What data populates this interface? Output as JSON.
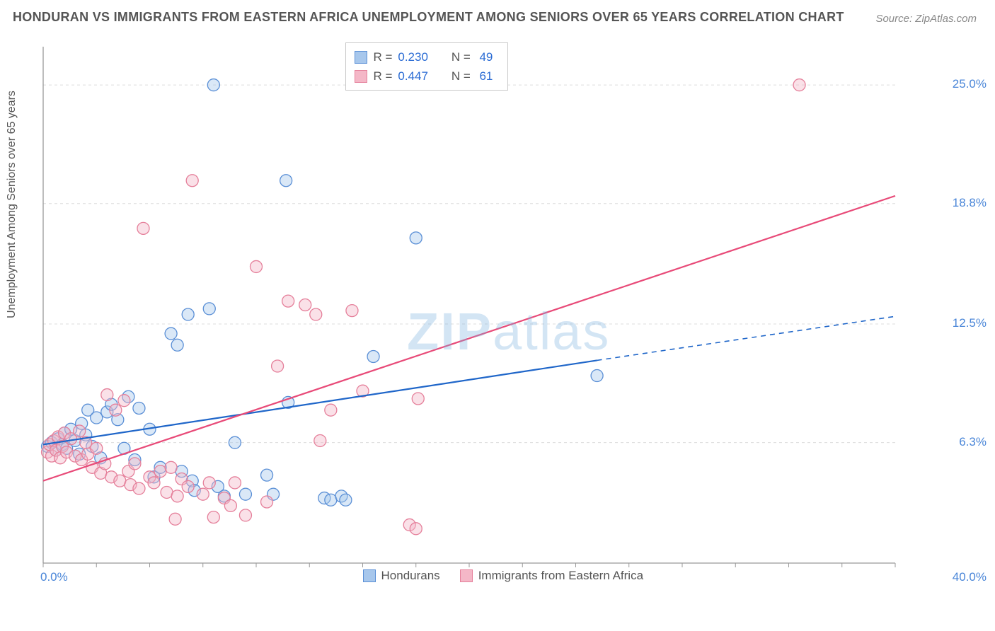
{
  "title": "HONDURAN VS IMMIGRANTS FROM EASTERN AFRICA UNEMPLOYMENT AMONG SENIORS OVER 65 YEARS CORRELATION CHART",
  "source": "Source: ZipAtlas.com",
  "ylabel": "Unemployment Among Seniors over 65 years",
  "watermark_part1": "ZIP",
  "watermark_part2": "atlas",
  "chart": {
    "type": "scatter",
    "xlim": [
      0,
      40
    ],
    "ylim": [
      0,
      27
    ],
    "x_tick_left": "0.0%",
    "x_tick_right": "40.0%",
    "y_ticks": [
      {
        "v": 6.3,
        "label": "6.3%"
      },
      {
        "v": 12.5,
        "label": "12.5%"
      },
      {
        "v": 18.8,
        "label": "18.8%"
      },
      {
        "v": 25.0,
        "label": "25.0%"
      }
    ],
    "x_minor_ticks": [
      0,
      2.5,
      5,
      7.5,
      10,
      12.5,
      15,
      17.5,
      20,
      22.5,
      25,
      27.5,
      30,
      32.5,
      35,
      37.5,
      40
    ],
    "background_color": "#ffffff",
    "grid_color": "#dcdcdc",
    "axis_color": "#999999",
    "marker_radius": 8.5,
    "marker_fill_opacity": 0.42,
    "marker_stroke_width": 1.3,
    "trend_line_width": 2.2,
    "series": [
      {
        "name": "Hondurans",
        "color_stroke": "#5a8fd6",
        "color_fill": "#a7c7ec",
        "line_color": "#1f66c9",
        "R": "0.230",
        "N": "49",
        "trend": {
          "x1": 0,
          "y1": 6.2,
          "x2": 26,
          "y2": 10.6,
          "dash_to_x": 40,
          "dash_to_y": 12.9
        },
        "points": [
          [
            0.2,
            6.1
          ],
          [
            0.4,
            6.3
          ],
          [
            0.6,
            5.9
          ],
          [
            0.7,
            6.5
          ],
          [
            0.9,
            6.2
          ],
          [
            1.0,
            6.8
          ],
          [
            1.1,
            6.0
          ],
          [
            1.3,
            7.0
          ],
          [
            1.5,
            6.4
          ],
          [
            1.7,
            5.7
          ],
          [
            1.8,
            7.3
          ],
          [
            2.0,
            6.7
          ],
          [
            2.1,
            8.0
          ],
          [
            2.3,
            6.1
          ],
          [
            2.5,
            7.6
          ],
          [
            2.7,
            5.5
          ],
          [
            3.0,
            7.9
          ],
          [
            3.2,
            8.3
          ],
          [
            3.5,
            7.5
          ],
          [
            3.8,
            6.0
          ],
          [
            4.0,
            8.7
          ],
          [
            4.3,
            5.4
          ],
          [
            4.5,
            8.1
          ],
          [
            5.0,
            7.0
          ],
          [
            5.2,
            4.5
          ],
          [
            5.5,
            5.0
          ],
          [
            6.0,
            12.0
          ],
          [
            6.3,
            11.4
          ],
          [
            6.5,
            4.8
          ],
          [
            6.8,
            13.0
          ],
          [
            7.0,
            4.3
          ],
          [
            7.1,
            3.8
          ],
          [
            7.8,
            13.3
          ],
          [
            8.0,
            25.0
          ],
          [
            8.2,
            4.0
          ],
          [
            8.5,
            3.5
          ],
          [
            9.0,
            6.3
          ],
          [
            9.5,
            3.6
          ],
          [
            10.5,
            4.6
          ],
          [
            10.8,
            3.6
          ],
          [
            11.4,
            20.0
          ],
          [
            11.5,
            8.4
          ],
          [
            13.2,
            3.4
          ],
          [
            13.5,
            3.3
          ],
          [
            14.0,
            3.5
          ],
          [
            14.2,
            3.3
          ],
          [
            15.5,
            10.8
          ],
          [
            17.5,
            17.0
          ],
          [
            26.0,
            9.8
          ]
        ]
      },
      {
        "name": "Immigrants from Eastern Africa",
        "color_stroke": "#e57f9a",
        "color_fill": "#f4b7c7",
        "line_color": "#e84a78",
        "R": "0.447",
        "N": "61",
        "trend": {
          "x1": 0,
          "y1": 4.3,
          "x2": 40,
          "y2": 19.2
        },
        "points": [
          [
            0.2,
            5.8
          ],
          [
            0.3,
            6.2
          ],
          [
            0.4,
            5.6
          ],
          [
            0.5,
            6.4
          ],
          [
            0.6,
            5.9
          ],
          [
            0.7,
            6.6
          ],
          [
            0.8,
            5.5
          ],
          [
            0.9,
            6.1
          ],
          [
            1.0,
            6.8
          ],
          [
            1.1,
            5.8
          ],
          [
            1.3,
            6.5
          ],
          [
            1.5,
            5.6
          ],
          [
            1.7,
            6.9
          ],
          [
            1.8,
            5.4
          ],
          [
            2.0,
            6.3
          ],
          [
            2.1,
            5.7
          ],
          [
            2.3,
            5.0
          ],
          [
            2.5,
            6.0
          ],
          [
            2.7,
            4.7
          ],
          [
            2.9,
            5.2
          ],
          [
            3.0,
            8.8
          ],
          [
            3.2,
            4.5
          ],
          [
            3.4,
            8.0
          ],
          [
            3.6,
            4.3
          ],
          [
            3.8,
            8.5
          ],
          [
            4.0,
            4.8
          ],
          [
            4.1,
            4.1
          ],
          [
            4.3,
            5.2
          ],
          [
            4.5,
            3.9
          ],
          [
            4.7,
            17.5
          ],
          [
            5.0,
            4.5
          ],
          [
            5.2,
            4.2
          ],
          [
            5.5,
            4.8
          ],
          [
            5.8,
            3.7
          ],
          [
            6.0,
            5.0
          ],
          [
            6.3,
            3.5
          ],
          [
            6.5,
            4.4
          ],
          [
            6.8,
            4.0
          ],
          [
            7.0,
            20.0
          ],
          [
            7.5,
            3.6
          ],
          [
            7.8,
            4.2
          ],
          [
            8.0,
            2.4
          ],
          [
            8.5,
            3.4
          ],
          [
            8.8,
            3.0
          ],
          [
            9.0,
            4.2
          ],
          [
            9.5,
            2.5
          ],
          [
            10.0,
            15.5
          ],
          [
            10.5,
            3.2
          ],
          [
            11.0,
            10.3
          ],
          [
            11.5,
            13.7
          ],
          [
            12.3,
            13.5
          ],
          [
            12.8,
            13.0
          ],
          [
            13.0,
            6.4
          ],
          [
            13.5,
            8.0
          ],
          [
            14.5,
            13.2
          ],
          [
            15.0,
            9.0
          ],
          [
            17.2,
            2.0
          ],
          [
            17.5,
            1.8
          ],
          [
            17.6,
            8.6
          ],
          [
            35.5,
            25.0
          ],
          [
            6.2,
            2.3
          ]
        ]
      }
    ]
  },
  "legend_bottom": {
    "items": [
      {
        "label": "Hondurans",
        "fill": "#a7c7ec",
        "stroke": "#5a8fd6"
      },
      {
        "label": "Immigrants from Eastern Africa",
        "fill": "#f4b7c7",
        "stroke": "#e57f9a"
      }
    ]
  }
}
